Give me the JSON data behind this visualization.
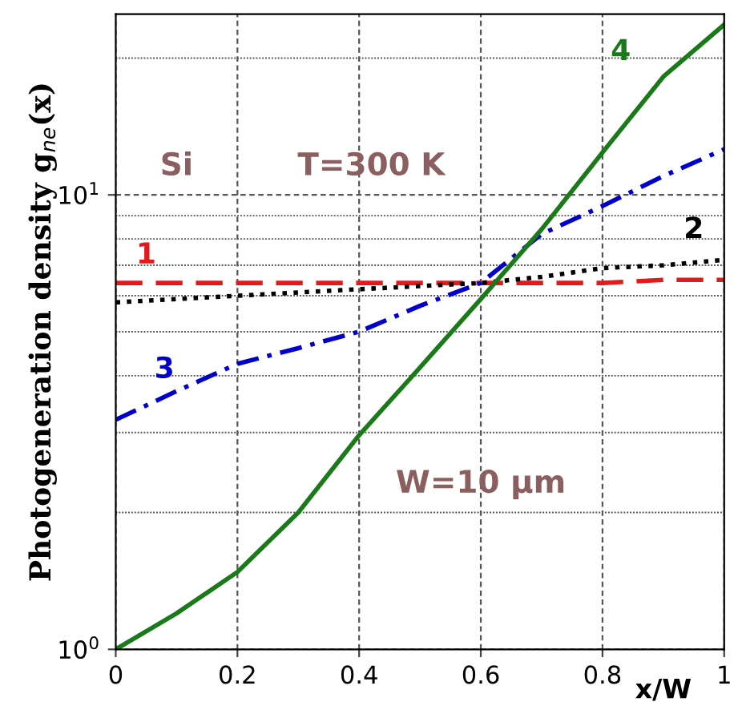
{
  "chart_data": {
    "type": "line",
    "xlabel": "x/W",
    "ylabel": "Photogeneration density g$_{ne}$(x)",
    "x": [
      0,
      0.1,
      0.2,
      0.3,
      0.4,
      0.5,
      0.6,
      0.7,
      0.8,
      0.9,
      1.0
    ],
    "series": [
      {
        "name": "1",
        "color": "#e31a1c",
        "line_style": "dashed",
        "values": [
          6.4,
          6.4,
          6.4,
          6.4,
          6.4,
          6.4,
          6.4,
          6.4,
          6.4,
          6.5,
          6.5
        ]
      },
      {
        "name": "2",
        "color": "#000000",
        "line_style": "dotted",
        "values": [
          5.8,
          5.9,
          6.0,
          6.1,
          6.2,
          6.3,
          6.4,
          6.6,
          6.9,
          7.0,
          7.2
        ]
      },
      {
        "name": "3",
        "color": "#0000cc",
        "line_style": "dashdot",
        "values": [
          3.2,
          3.7,
          4.25,
          4.6,
          5.0,
          5.7,
          6.4,
          8.2,
          9.45,
          11.0,
          12.6
        ]
      },
      {
        "name": "4",
        "color": "#1a7a1a",
        "line_style": "solid",
        "values": [
          1.0,
          1.2,
          1.48,
          2.0,
          2.96,
          4.17,
          5.9,
          8.4,
          12.4,
          18.2,
          23.7
        ]
      }
    ],
    "annotations": [
      "Si",
      "T=300 K",
      "W=10 μm"
    ],
    "log": "y",
    "xlim": [
      0,
      1
    ],
    "ylim": [
      1,
      25
    ],
    "xticks": [
      0,
      0.2,
      0.4,
      0.6,
      0.8,
      1
    ],
    "yticks": [
      {
        "value": 1,
        "label": "10$^{0}$"
      },
      {
        "value": 10,
        "label": "10$^{1}$"
      }
    ],
    "grid": true
  }
}
